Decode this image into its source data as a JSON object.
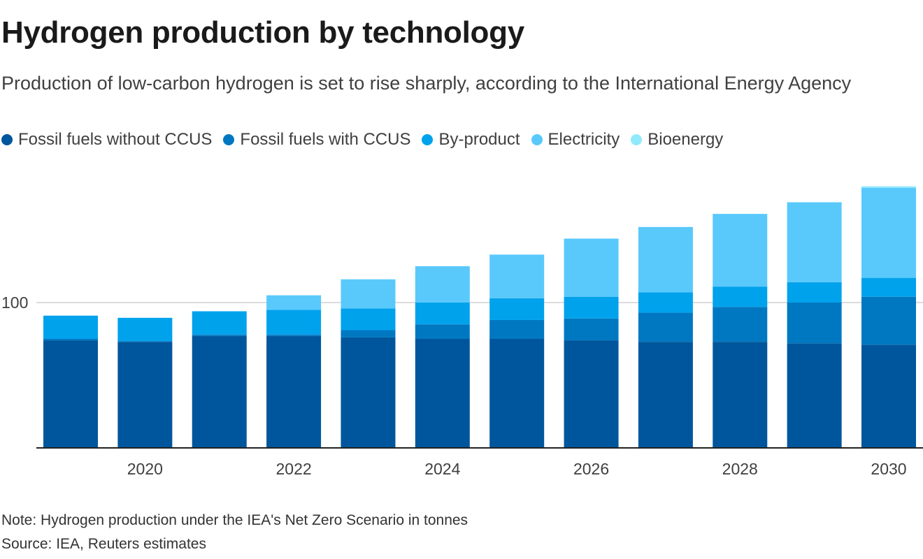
{
  "title": "Hydrogen production by technology",
  "subtitle": "Production of low-carbon hydrogen is set to rise sharply, according to the International Energy Agency",
  "note": "Note: Hydrogen production under the IEA's Net Zero Scenario in tonnes",
  "source": "Source: IEA, Reuters estimates",
  "chart_data": {
    "type": "bar",
    "stacked": true,
    "categories": [
      "2019",
      "2020",
      "2021",
      "2022",
      "2023",
      "2024",
      "2025",
      "2026",
      "2027",
      "2028",
      "2029",
      "2030"
    ],
    "x_tick_labels": [
      "2020",
      "2022",
      "2024",
      "2026",
      "2028",
      "2030"
    ],
    "y_tick_labels": [
      "100"
    ],
    "y_ticks": [
      100
    ],
    "ylim": [
      0,
      180
    ],
    "grid": true,
    "legend_position": "top-left",
    "series": [
      {
        "name": "Fossil fuels without CCUS",
        "color": "#00569c",
        "values": [
          74,
          73,
          77,
          77,
          76,
          75,
          75,
          74,
          73,
          73,
          72,
          71
        ]
      },
      {
        "name": "Fossil fuels with CCUS",
        "color": "#0078c1",
        "values": [
          1,
          0.5,
          1,
          1,
          5,
          10,
          13,
          15,
          20,
          24,
          28,
          33
        ]
      },
      {
        "name": "By-product",
        "color": "#01a2ec",
        "values": [
          16,
          16,
          16,
          17,
          15,
          15,
          15,
          15,
          14,
          14,
          14,
          13
        ]
      },
      {
        "name": "Electricity",
        "color": "#59c9fc",
        "values": [
          0,
          0,
          0,
          10,
          20,
          25,
          30,
          40,
          45,
          50,
          55,
          62
        ]
      },
      {
        "name": "Bioenergy",
        "color": "#91eafc",
        "values": [
          0,
          0,
          0,
          0,
          0,
          0,
          0,
          0,
          0,
          0,
          0,
          1
        ]
      }
    ]
  }
}
